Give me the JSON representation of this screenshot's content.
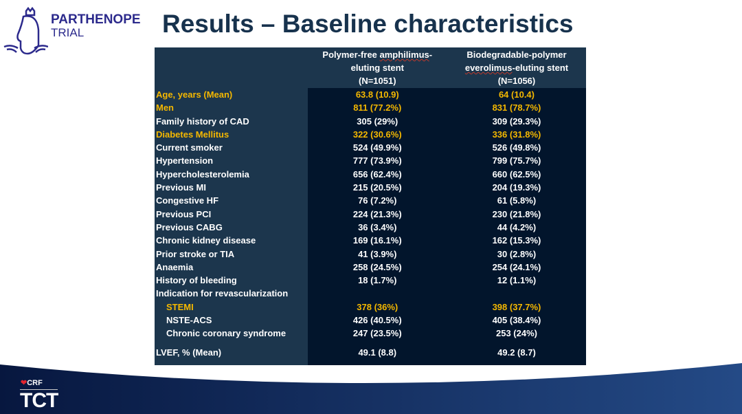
{
  "logo": {
    "line1": "PARTHENOPE",
    "line2": "TRIAL"
  },
  "title": "Results – Baseline characteristics",
  "table": {
    "headers": [
      {
        "line1": "Polymer-free ",
        "line1b": "amphilimus",
        "line1c": "-",
        "line2": "eluting stent",
        "line3": "(N=1051)"
      },
      {
        "line1": "Biodegradable-polymer",
        "line2a": "everolimus",
        "line2b": "-eluting stent",
        "line3": "(N=1056)"
      }
    ],
    "rows": [
      {
        "label": "Age, years (Mean)",
        "a": "63.8 (10.9)",
        "b": "64 (10.4)",
        "highlight": true
      },
      {
        "label": "Men",
        "a": "811 (77.2%)",
        "b": "831 (78.7%)",
        "highlight": true
      },
      {
        "label": "Family history of CAD",
        "a": "305 (29%)",
        "b": "309 (29.3%)"
      },
      {
        "label": "Diabetes Mellitus",
        "a": "322 (30.6%)",
        "b": "336 (31.8%)",
        "highlight": true
      },
      {
        "label": "Current smoker",
        "a": "524 (49.9%)",
        "b": "526 (49.8%)"
      },
      {
        "label": "Hypertension",
        "a": "777 (73.9%)",
        "b": "799 (75.7%)"
      },
      {
        "label": "Hypercholesterolemia",
        "a": "656 (62.4%)",
        "b": "660 (62.5%)"
      },
      {
        "label": "Previous MI",
        "a": "215 (20.5%)",
        "b": "204 (19.3%)"
      },
      {
        "label": "Congestive HF",
        "a": "76 (7.2%)",
        "b": "61 (5.8%)"
      },
      {
        "label": "Previous PCI",
        "a": "224 (21.3%)",
        "b": "230 (21.8%)"
      },
      {
        "label": "Previous CABG",
        "a": "36 (3.4%)",
        "b": "44 (4.2%)"
      },
      {
        "label": "Chronic kidney disease",
        "a": "169 (16.1%)",
        "b": "162 (15.3%)"
      },
      {
        "label": "Prior stroke or TIA",
        "a": "41 (3.9%)",
        "b": "30 (2.8%)"
      },
      {
        "label": "Anaemia",
        "a": "258 (24.5%)",
        "b": "254 (24.1%)"
      },
      {
        "label": "History of bleeding",
        "a": "18 (1.7%)",
        "b": "12 (1.1%)"
      },
      {
        "label": "Indication for revascularization",
        "a": "",
        "b": ""
      },
      {
        "label": "STEMI",
        "a": "378 (36%)",
        "b": "398 (37.7%)",
        "highlight": true,
        "indent": true
      },
      {
        "label": "NSTE-ACS",
        "a": "426 (40.5%)",
        "b": "405 (38.4%)",
        "indent": true
      },
      {
        "label": "Chronic coronary syndrome",
        "a": "247 (23.5%)",
        "b": "253 (24%)",
        "indent": true
      },
      {
        "label": "LVEF, % (Mean)",
        "a": "49.1 (8.8)",
        "b": "49.2 (8.7)",
        "last": true
      }
    ]
  },
  "footer": {
    "crf": "CRF",
    "tct": "TCT"
  },
  "colors": {
    "accent": "#f5b800",
    "header": "#1c364d",
    "cell": "#02152c",
    "title": "#17324d",
    "brand": "#2c2a8c"
  }
}
